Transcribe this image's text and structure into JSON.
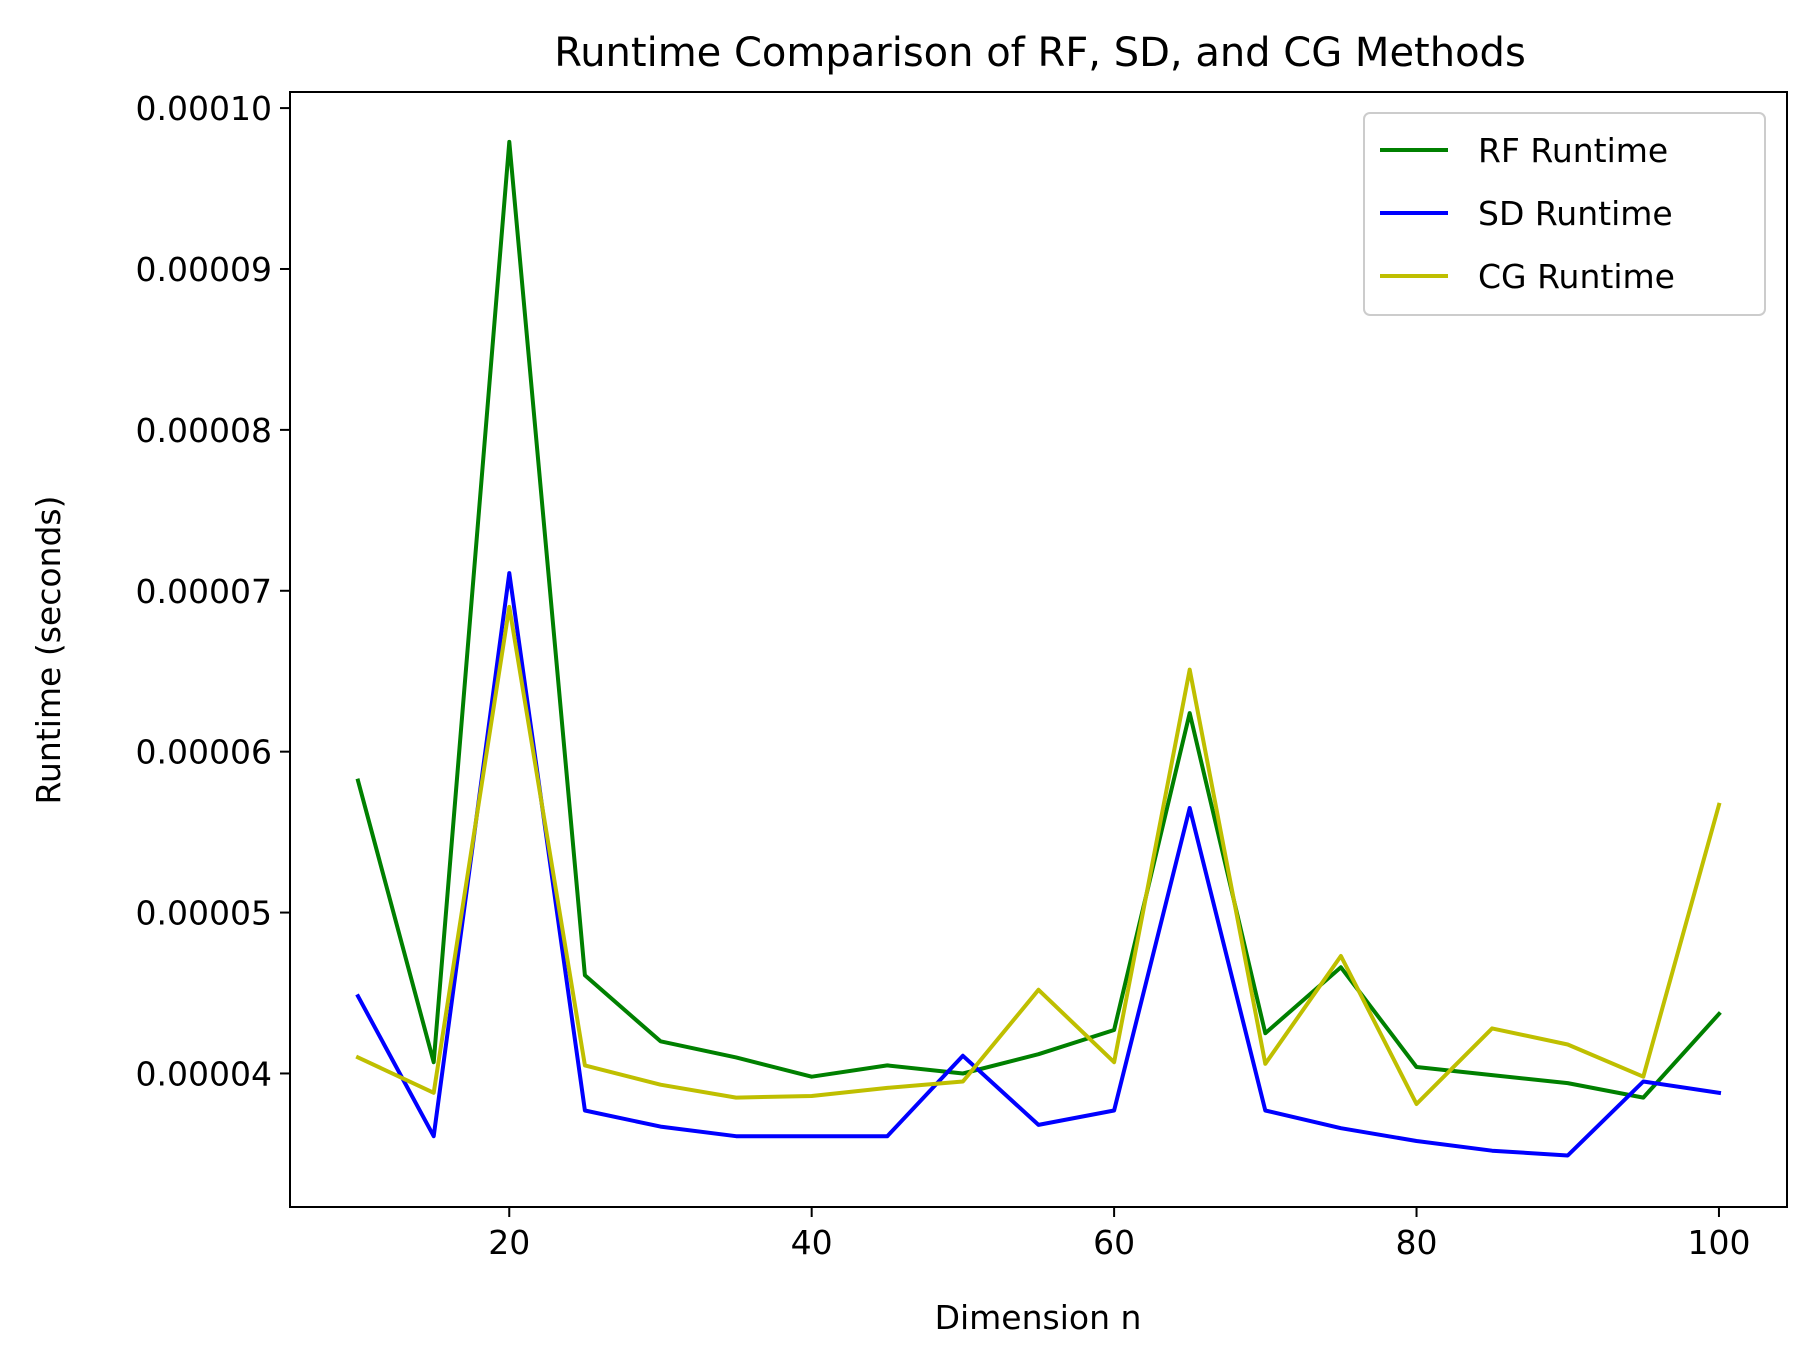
{
  "chart_data": {
    "type": "line",
    "title": "Runtime Comparison of RF, SD, and CG Methods",
    "xlabel": "Dimension n",
    "ylabel": "Runtime (seconds)",
    "x": [
      10,
      15,
      20,
      25,
      30,
      35,
      40,
      45,
      50,
      55,
      60,
      65,
      70,
      75,
      80,
      85,
      90,
      95,
      100
    ],
    "xlim": [
      5.5,
      104.5
    ],
    "ylim": [
      3.17e-05,
      0.000101
    ],
    "xticks": [
      20,
      40,
      60,
      80,
      100
    ],
    "xtick_labels": [
      "20",
      "40",
      "60",
      "80",
      "100"
    ],
    "yticks": [
      4e-05,
      5e-05,
      6e-05,
      7e-05,
      8e-05,
      9e-05,
      0.0001
    ],
    "ytick_labels": [
      "0.00004",
      "0.00005",
      "0.00006",
      "0.00007",
      "0.00008",
      "0.00009",
      "0.00010"
    ],
    "grid": false,
    "legend_position": "top-right",
    "series": [
      {
        "name": "RF Runtime",
        "color": "#008000",
        "values": [
          5.82e-05,
          4.07e-05,
          9.79e-05,
          4.61e-05,
          4.2e-05,
          4.1e-05,
          3.98e-05,
          4.05e-05,
          4e-05,
          4.12e-05,
          4.27e-05,
          6.24e-05,
          4.25e-05,
          4.66e-05,
          4.04e-05,
          3.99e-05,
          3.94e-05,
          3.85e-05,
          4.37e-05
        ]
      },
      {
        "name": "SD Runtime",
        "color": "#0000ff",
        "values": [
          4.48e-05,
          3.61e-05,
          7.11e-05,
          3.77e-05,
          3.67e-05,
          3.61e-05,
          3.61e-05,
          3.61e-05,
          4.11e-05,
          3.68e-05,
          3.77e-05,
          5.65e-05,
          3.77e-05,
          3.66e-05,
          3.58e-05,
          3.52e-05,
          3.49e-05,
          3.95e-05,
          3.88e-05
        ]
      },
      {
        "name": "CG Runtime",
        "color": "#bfbf00",
        "values": [
          4.1e-05,
          3.88e-05,
          6.9e-05,
          4.05e-05,
          3.93e-05,
          3.85e-05,
          3.86e-05,
          3.91e-05,
          3.95e-05,
          4.52e-05,
          4.07e-05,
          6.51e-05,
          4.06e-05,
          4.73e-05,
          3.81e-05,
          4.28e-05,
          4.18e-05,
          3.98e-05,
          5.67e-05
        ]
      }
    ]
  }
}
